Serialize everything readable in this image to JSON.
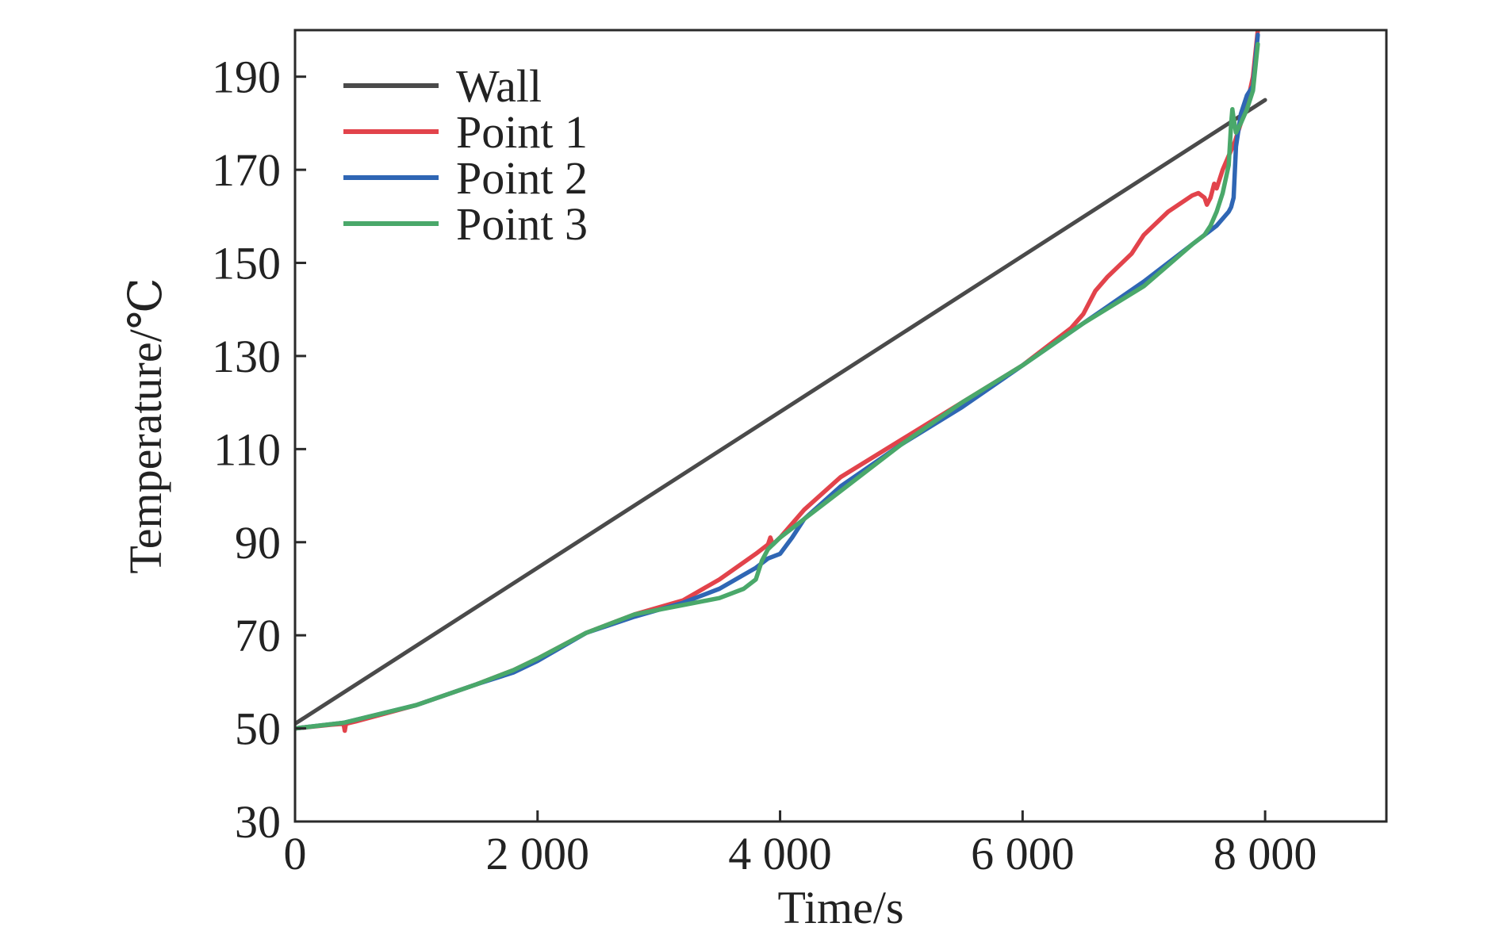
{
  "chart_data": {
    "type": "line",
    "title": "",
    "xlabel": "Time/s",
    "ylabel": "Temperature/℃",
    "xlim": [
      0,
      9000
    ],
    "ylim": [
      30,
      200
    ],
    "xticks": [
      0,
      2000,
      4000,
      6000,
      8000
    ],
    "xtick_labels": [
      "0",
      "2 000",
      "4 000",
      "6 000",
      "8 000"
    ],
    "yticks": [
      30,
      50,
      70,
      90,
      110,
      130,
      150,
      170,
      190
    ],
    "ytick_labels": [
      "30",
      "50",
      "70",
      "90",
      "110",
      "130",
      "150",
      "170",
      "190"
    ],
    "grid": false,
    "legend_position": "top-left",
    "series": [
      {
        "name": "Wall",
        "color": "#4a4a4a",
        "x": [
          0,
          8000
        ],
        "y": [
          51,
          185
        ]
      },
      {
        "name": "Point 1",
        "color": "#e2434b",
        "x": [
          0,
          300,
          400,
          410,
          420,
          500,
          1000,
          1500,
          1800,
          2000,
          2400,
          2800,
          3200,
          3500,
          3800,
          3900,
          3920,
          3940,
          3960,
          4000,
          4200,
          4500,
          5000,
          5500,
          6000,
          6200,
          6400,
          6500,
          6600,
          6700,
          6900,
          7000,
          7200,
          7400,
          7450,
          7500,
          7520,
          7550,
          7580,
          7600,
          7650,
          7700,
          7750,
          7800,
          7850,
          7900,
          7940
        ],
        "y": [
          50,
          50.8,
          51,
          49.5,
          51,
          51.5,
          55,
          59.5,
          62.5,
          65,
          70.5,
          74.5,
          77.5,
          82,
          87.5,
          89.5,
          91,
          89.5,
          90,
          91,
          97,
          104,
          112,
          120,
          128,
          132,
          136,
          139,
          144,
          147,
          152,
          156,
          161,
          164.5,
          165,
          164,
          162.5,
          164,
          167,
          166,
          170,
          173,
          176,
          180,
          184,
          190,
          200
        ]
      },
      {
        "name": "Point 2",
        "color": "#2f66b4",
        "x": [
          0,
          400,
          1000,
          1500,
          1800,
          2000,
          2400,
          2800,
          3200,
          3500,
          3700,
          3800,
          3900,
          4000,
          4100,
          4200,
          4500,
          5000,
          5500,
          6000,
          6500,
          7000,
          7200,
          7400,
          7500,
          7600,
          7700,
          7720,
          7730,
          7740,
          7760,
          7800,
          7850,
          7900,
          7940
        ],
        "y": [
          50,
          51.2,
          55,
          59.5,
          62,
          64.5,
          70.5,
          74,
          77,
          80,
          83,
          84.5,
          86.5,
          87.5,
          91,
          95,
          102,
          111,
          119,
          128,
          137,
          146,
          150,
          154,
          156,
          158,
          161,
          162,
          163,
          164,
          175,
          182,
          186,
          188,
          199
        ]
      },
      {
        "name": "Point 3",
        "color": "#4aa86a",
        "x": [
          0,
          400,
          1000,
          1500,
          1800,
          2000,
          2400,
          2800,
          3200,
          3500,
          3700,
          3800,
          3850,
          3900,
          4000,
          4200,
          4500,
          5000,
          5500,
          6000,
          6500,
          7000,
          7200,
          7400,
          7500,
          7550,
          7600,
          7650,
          7700,
          7720,
          7730,
          7740,
          7760,
          7800,
          7850,
          7900,
          7940
        ],
        "y": [
          50,
          51.2,
          55,
          59.5,
          62.5,
          65,
          70.5,
          74.5,
          76.5,
          78,
          80,
          82,
          86,
          88.5,
          91,
          95,
          101,
          111,
          120,
          128,
          137,
          145,
          149.5,
          154,
          156,
          158,
          161,
          165,
          171,
          180,
          183,
          181,
          178,
          180,
          183,
          187,
          197
        ]
      }
    ]
  }
}
